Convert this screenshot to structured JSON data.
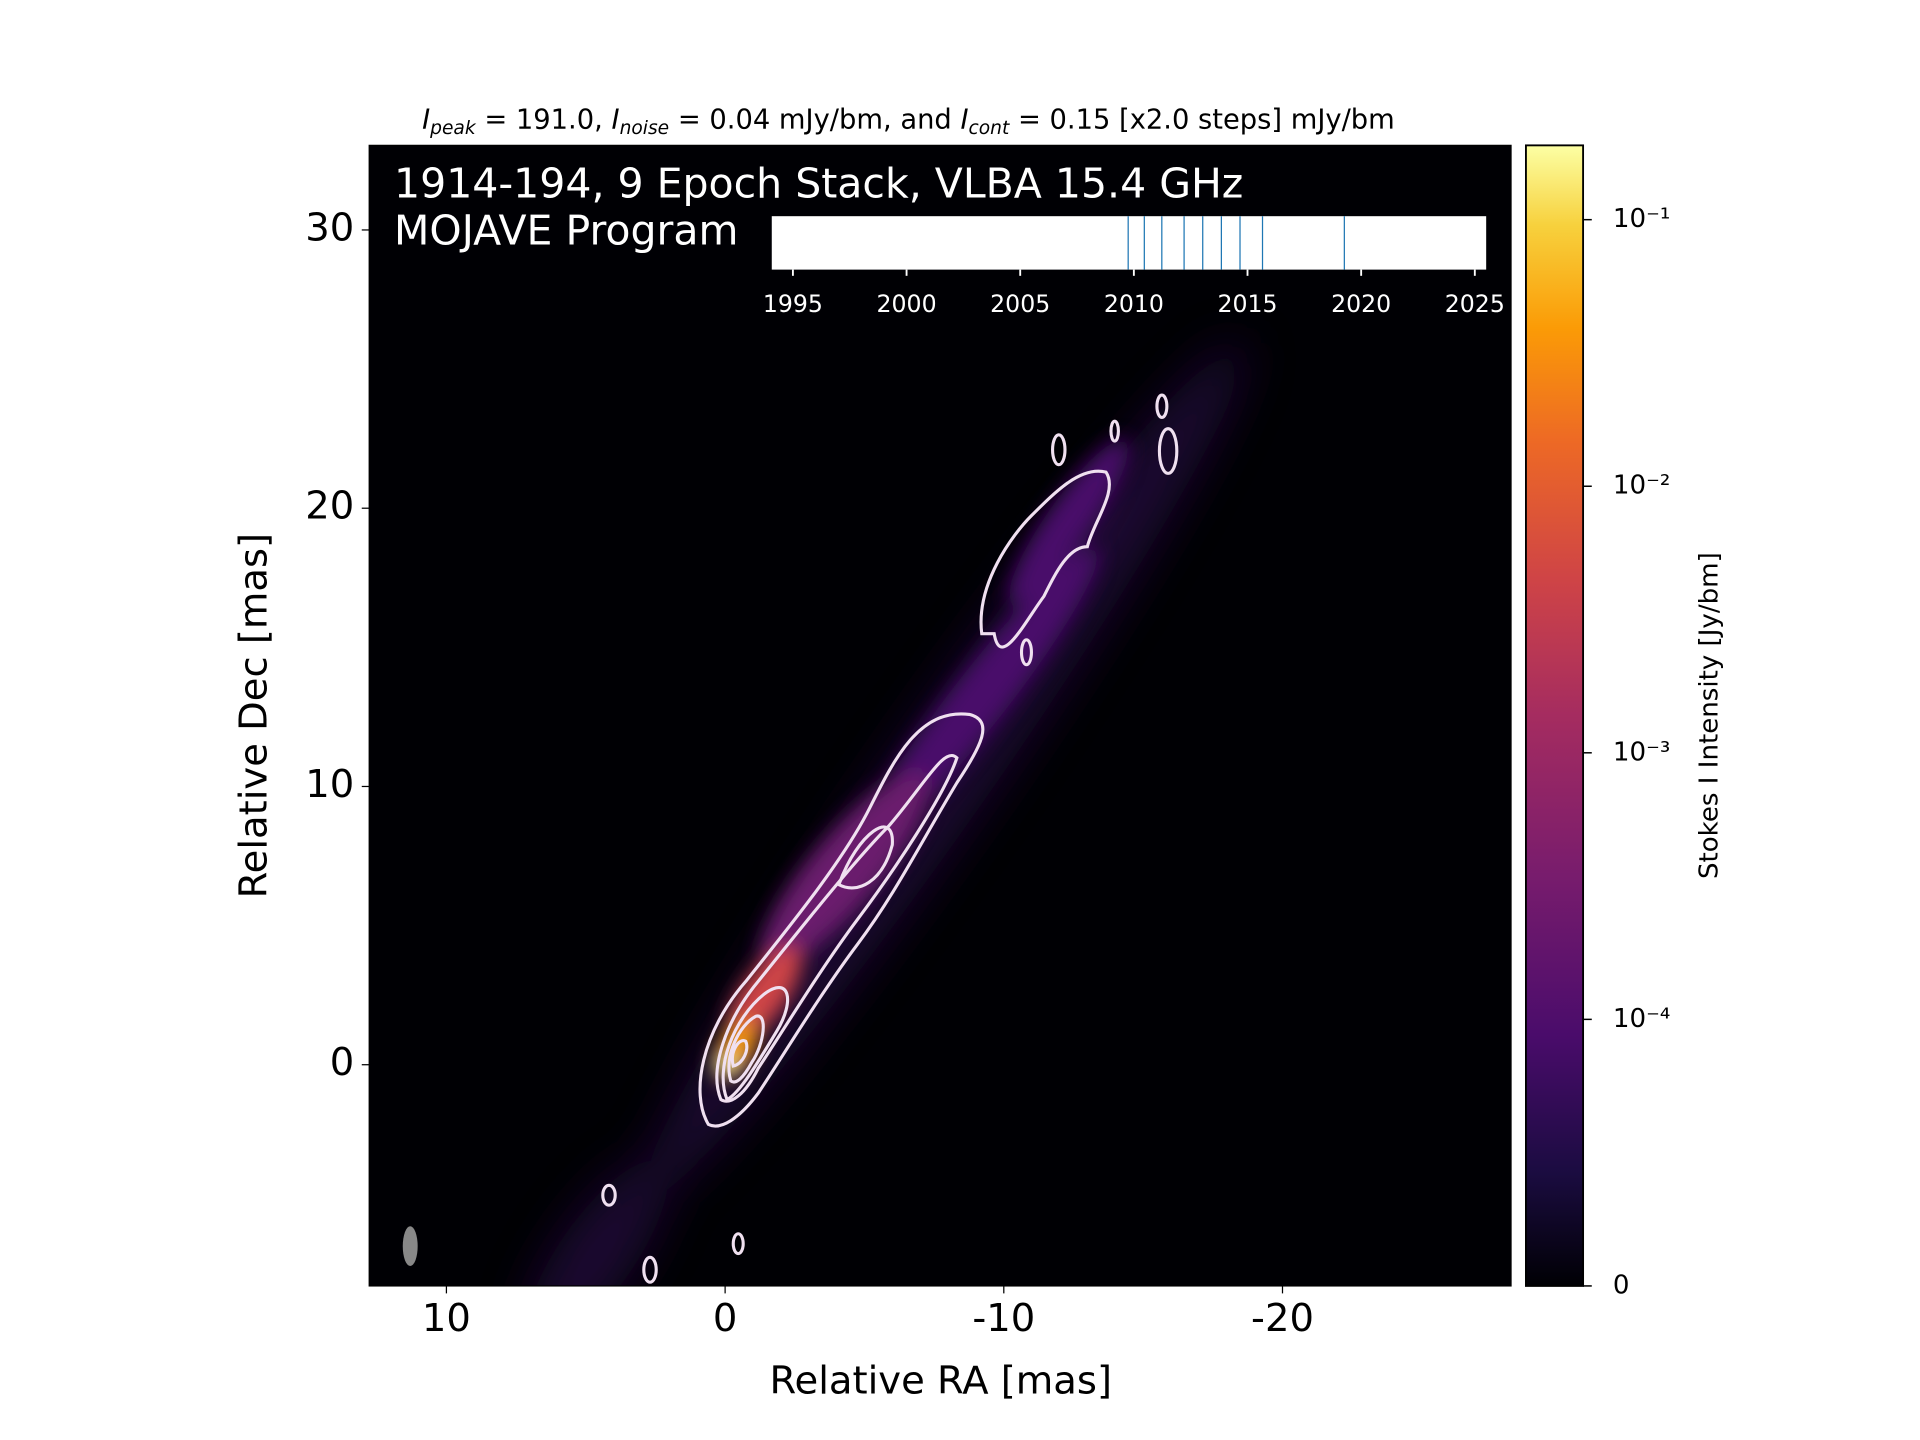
{
  "chart_data": {
    "type": "image",
    "title_parts": [
      "I",
      "peak",
      " = 191.0, ",
      "I",
      "noise",
      " = 0.04 mJy/bm, and ",
      "I",
      "cont",
      " = 0.15 [x2.0 steps] mJy/bm"
    ],
    "annotations": [
      "1914-194, 9 Epoch Stack, VLBA 15.4 GHz",
      "MOJAVE Program"
    ],
    "x_label": "Relative RA [mas]",
    "y_label": "Relative Dec [mas]",
    "xlim": [
      12.77,
      -28.2
    ],
    "ylim": [
      -7.95,
      33.04
    ],
    "xticks": [
      10,
      0,
      -10,
      -20
    ],
    "yticks": [
      0,
      10,
      20,
      30
    ],
    "colorbar": {
      "label": "Stokes I Intensity [Jy/bm]",
      "scale": "symlog",
      "linthresh": 0.0001,
      "lim": [
        0,
        0.19
      ],
      "ticks": [
        0,
        {
          "value": 0.0001,
          "label": "10⁻⁴"
        },
        {
          "value": 0.001,
          "label": "10⁻³"
        },
        {
          "value": 0.01,
          "label": "10⁻²"
        },
        {
          "value": 0.1,
          "label": "10⁻¹"
        }
      ],
      "colormap": "inferno"
    },
    "epochs": {
      "xlim": [
        1994.07,
        2025.5
      ],
      "xticks": [
        1995,
        2000,
        2005,
        2010,
        2015,
        2020,
        2025
      ],
      "x": [
        2009.75,
        2010.46,
        2011.23,
        2012.21,
        2013.03,
        2013.85,
        2014.67,
        2015.66,
        2019.26
      ],
      "color": "#1f77b4"
    }
  }
}
